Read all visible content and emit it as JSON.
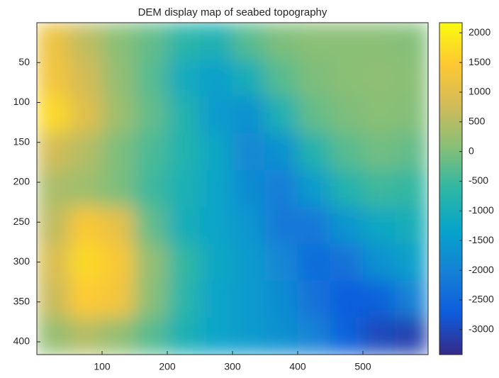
{
  "chart_data": {
    "type": "heatmap",
    "title": "DEM display map of seabed topography",
    "xlim": [
      0,
      600
    ],
    "xticks": [
      100,
      200,
      300,
      400,
      500
    ],
    "ylim": [
      0,
      416
    ],
    "yticks": [
      50,
      100,
      150,
      200,
      250,
      300,
      350,
      400
    ],
    "y_reversed": true,
    "clim": [
      -3420,
      2170
    ],
    "cticks": [
      2000,
      1500,
      1000,
      500,
      0,
      -500,
      -1000,
      -1500,
      -2000,
      -2500,
      -3000
    ],
    "colormap": [
      "#352a87",
      "#0f5cdd",
      "#1481d6",
      "#06a4ca",
      "#2eb7a4",
      "#87bf77",
      "#d1bb59",
      "#fec832",
      "#f9fb0e"
    ],
    "z": [
      [
        1200,
        600,
        100,
        -200,
        -700,
        -900,
        -300,
        0,
        100,
        100,
        100,
        50
      ],
      [
        1300,
        800,
        200,
        -300,
        -1100,
        -1400,
        -1000,
        -300,
        0,
        100,
        150,
        100
      ],
      [
        1700,
        1000,
        300,
        -200,
        -800,
        -1500,
        -1700,
        -900,
        -200,
        0,
        100,
        50
      ],
      [
        800,
        500,
        0,
        -400,
        -800,
        -1200,
        -1900,
        -1700,
        -800,
        -300,
        -100,
        -200
      ],
      [
        400,
        300,
        0,
        -500,
        -900,
        -1300,
        -1800,
        -2100,
        -1500,
        -800,
        -500,
        -600
      ],
      [
        600,
        1400,
        1100,
        -200,
        -1000,
        -1300,
        -1600,
        -2200,
        -2200,
        -1600,
        -1200,
        -1000
      ],
      [
        900,
        1700,
        1400,
        200,
        -600,
        -1200,
        -1500,
        -1900,
        -2400,
        -2300,
        -1700,
        -1400
      ],
      [
        700,
        1500,
        1300,
        100,
        -700,
        -1300,
        -1500,
        -1800,
        -2300,
        -2700,
        -2600,
        -2000
      ],
      [
        200,
        500,
        200,
        -300,
        -900,
        -1300,
        -1500,
        -1700,
        -2000,
        -2600,
        -3000,
        -3100
      ]
    ]
  }
}
